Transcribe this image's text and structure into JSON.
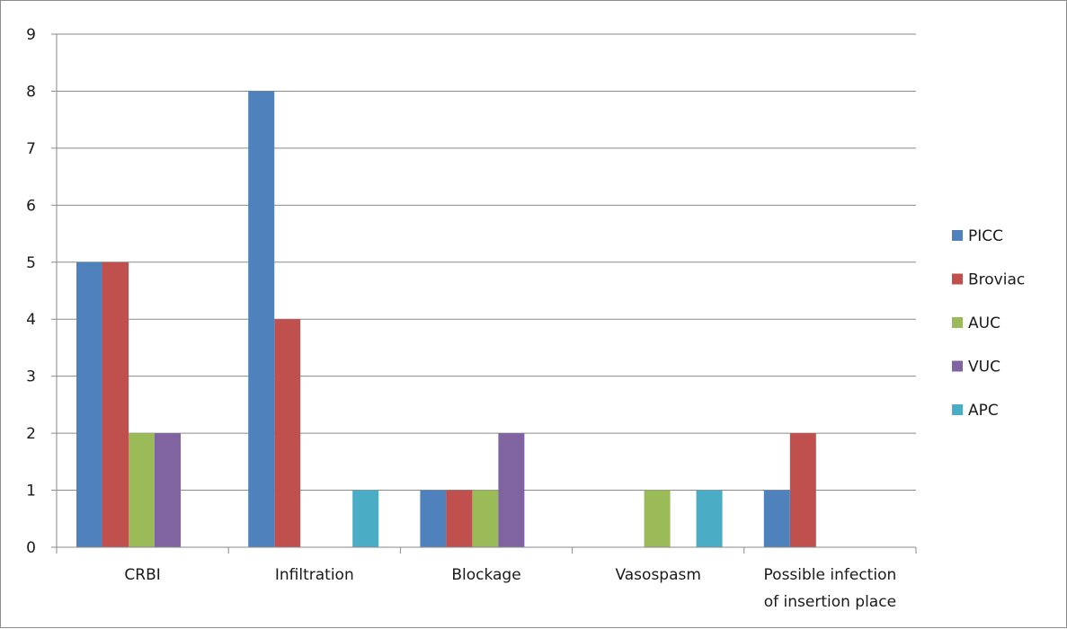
{
  "chart_data": {
    "type": "bar",
    "categories": [
      "CRBI",
      "Infiltration",
      "Blockage",
      "Vasospasm",
      [
        "Possible infection",
        "of insertion place"
      ]
    ],
    "series": [
      {
        "name": "PICC",
        "color": "#4f81bd",
        "values": [
          5,
          8,
          1,
          0,
          1
        ]
      },
      {
        "name": "Broviac",
        "color": "#c0504d",
        "values": [
          5,
          4,
          1,
          0,
          2
        ]
      },
      {
        "name": "AUC",
        "color": "#9bbb59",
        "values": [
          2,
          0,
          1,
          1,
          0
        ]
      },
      {
        "name": "VUC",
        "color": "#8064a2",
        "values": [
          2,
          0,
          2,
          0,
          0
        ]
      },
      {
        "name": "APC",
        "color": "#4bacc6",
        "values": [
          0,
          1,
          0,
          1,
          0
        ]
      }
    ],
    "ylim": [
      0,
      9
    ],
    "yticks": [
      0,
      1,
      2,
      3,
      4,
      5,
      6,
      7,
      8,
      9
    ],
    "grid": true,
    "legend_position": "right",
    "title": "",
    "xlabel": "",
    "ylabel": ""
  }
}
